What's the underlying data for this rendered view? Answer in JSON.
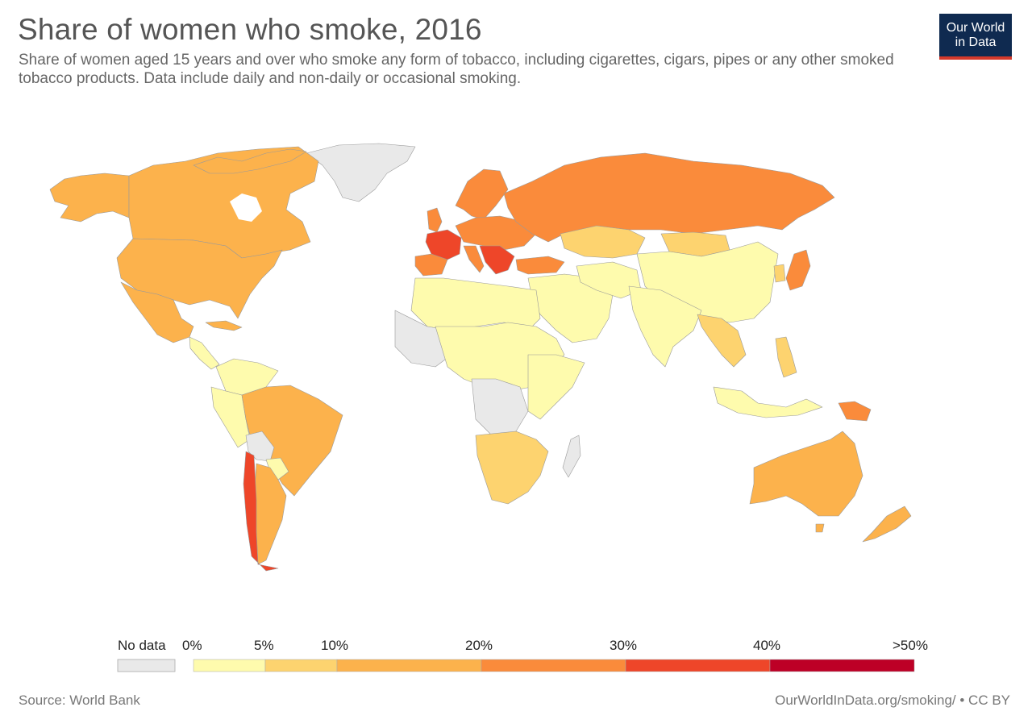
{
  "header": {
    "title": "Share of women who smoke, 2016",
    "subtitle": "Share of women aged 15 years and over who smoke any form of tobacco, including cigarettes, cigars, pipes or any other smoked tobacco products. Data include daily and non-daily or occasional smoking."
  },
  "logo": {
    "line1": "Our World",
    "line2": "in Data"
  },
  "legend": {
    "no_data_label": "No data",
    "no_data_color": "#e9e9e9",
    "bins": [
      {
        "from": "0%",
        "to": "5%",
        "color": "#fefbad"
      },
      {
        "from": "5%",
        "to": "10%",
        "color": "#fdd36f"
      },
      {
        "from": "10%",
        "to": "20%",
        "color": "#fcb24c"
      },
      {
        "from": "20%",
        "to": "30%",
        "color": "#fa8b3b"
      },
      {
        "from": "30%",
        "to": "40%",
        "color": "#ee4629"
      },
      {
        "from": "40%",
        "to": ">50%",
        "color": "#bd0026"
      }
    ],
    "tick_labels": [
      "0%",
      "5%",
      "10%",
      "20%",
      "30%",
      "40%",
      ">50%"
    ]
  },
  "footer": {
    "source": "Source: World Bank",
    "link": "OurWorldInData.org/smoking/ • CC BY"
  },
  "colors": {
    "no_data": "#e9e9e9",
    "lt5": "#fefbad",
    "5to10": "#fdd36f",
    "10to20": "#fcb24c",
    "20to30": "#fa8b3b",
    "30to40": "#ee4629",
    "gt40": "#bd0026"
  }
}
